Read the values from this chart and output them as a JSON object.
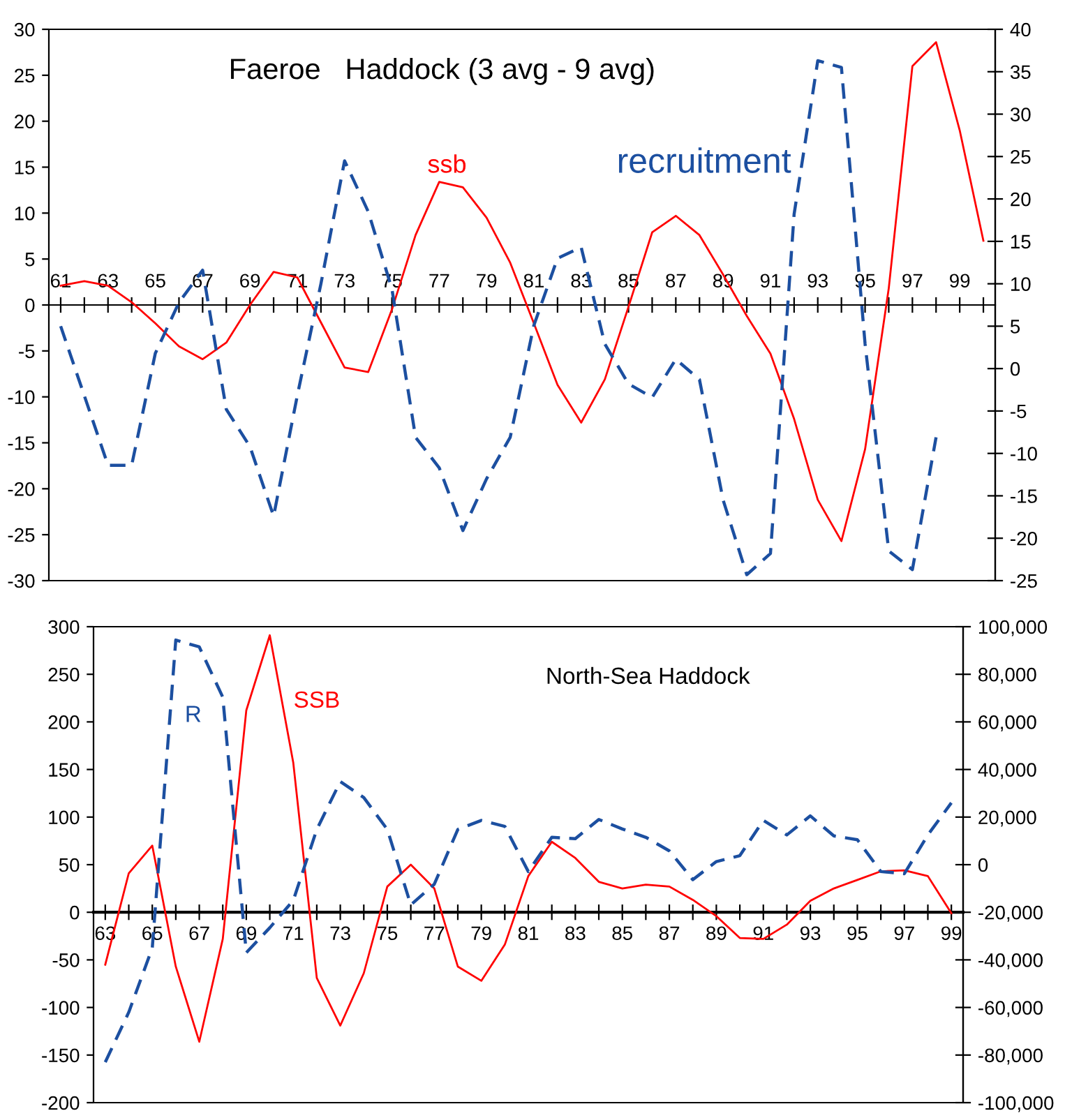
{
  "chart_data": [
    {
      "type": "line",
      "title": "Faeroe   Haddock (3 avg - 9 avg)",
      "x": [
        61,
        62,
        63,
        64,
        65,
        66,
        67,
        68,
        69,
        70,
        71,
        72,
        73,
        74,
        75,
        76,
        77,
        78,
        79,
        80,
        81,
        82,
        83,
        84,
        85,
        86,
        87,
        88,
        89,
        90,
        91,
        92,
        93,
        94,
        95,
        96,
        97,
        98,
        99,
        100
      ],
      "series": [
        {
          "name": "ssb",
          "color": "#ff0000",
          "line_style": "solid",
          "values": [
            2.1,
            2.6,
            2.1,
            0.3,
            -2,
            -4.5,
            -5.9,
            -4.1,
            0,
            3.6,
            3,
            -1.9,
            -6.8,
            -7.3,
            -0.5,
            7.6,
            13.4,
            12.8,
            9.5,
            4.6,
            -2,
            -8.7,
            -12.8,
            -8.1,
            -0.2,
            7.9,
            9.7,
            7.6,
            3.3,
            -1.2,
            -5.3,
            -12.4,
            -21.2,
            -25.7,
            -15.7,
            1.8,
            26,
            28.6,
            19,
            7
          ]
        },
        {
          "name": "recruitment",
          "color": "#1c4fa0",
          "line_style": "dashed",
          "axis": "y2",
          "values": [
            5,
            -3.2,
            -11.4,
            -11.4,
            1.8,
            7.8,
            11.6,
            -4.8,
            -9.2,
            -17.4,
            -3.2,
            10,
            24.5,
            18.5,
            9.4,
            -8.1,
            -11.7,
            -19.1,
            -13,
            -8.1,
            5.1,
            13,
            14.3,
            2.9,
            -1.8,
            -3.4,
            1.1,
            -1.3,
            -15.5,
            -24.3,
            -21.8,
            18.2,
            36.3,
            35.5,
            2.9,
            -21.5,
            -23.7,
            -8.1,
            null,
            null
          ]
        }
      ],
      "xlim": [
        60.5,
        100.5
      ],
      "xticks": [
        61,
        {
          "value": 62,
          "label": null
        },
        63,
        {
          "value": 64,
          "label": null
        },
        65,
        {
          "value": 66,
          "label": null
        },
        67,
        {
          "value": 68,
          "label": null
        },
        69,
        {
          "value": 70,
          "label": null
        },
        71,
        {
          "value": 72,
          "label": null
        },
        73,
        {
          "value": 74,
          "label": null
        },
        75,
        {
          "value": 76,
          "label": null
        },
        77,
        {
          "value": 78,
          "label": null
        },
        79,
        {
          "value": 80,
          "label": null
        },
        81,
        {
          "value": 82,
          "label": null
        },
        83,
        {
          "value": 84,
          "label": null
        },
        85,
        {
          "value": 86,
          "label": null
        },
        87,
        {
          "value": 88,
          "label": null
        },
        89,
        {
          "value": 90,
          "label": null
        },
        91,
        {
          "value": 92,
          "label": null
        },
        93,
        {
          "value": 94,
          "label": null
        },
        95,
        {
          "value": 96,
          "label": null
        },
        97,
        {
          "value": 98,
          "label": null
        },
        99,
        {
          "value": 100,
          "label": null
        }
      ],
      "ylim": [
        -30,
        30
      ],
      "yticks": [
        -30,
        -25,
        -20,
        -15,
        -10,
        -5,
        0,
        5,
        10,
        15,
        20,
        25,
        30
      ],
      "y2lim": [
        -25,
        40
      ],
      "y2ticks": [
        -25,
        -20,
        -15,
        -10,
        -5,
        0,
        5,
        10,
        15,
        20,
        25,
        30,
        35,
        40
      ],
      "grid": false,
      "legend": false,
      "marker": "none"
    },
    {
      "type": "line",
      "title": "North-Sea Haddock",
      "x": [
        63,
        64,
        65,
        66,
        67,
        68,
        69,
        70,
        71,
        72,
        73,
        74,
        75,
        76,
        77,
        78,
        79,
        80,
        81,
        82,
        83,
        84,
        85,
        86,
        87,
        88,
        89,
        90,
        91,
        92,
        93,
        94,
        95,
        96,
        97,
        98,
        99
      ],
      "series": [
        {
          "name": "SSB",
          "color": "#ff0000",
          "line_style": "solid",
          "values": [
            -55,
            41,
            70,
            -57,
            -136,
            -28,
            212,
            291,
            157,
            -69,
            -119,
            -64,
            27,
            50,
            25,
            -57,
            -72,
            -34,
            38,
            74,
            57,
            32,
            25,
            29,
            27,
            13,
            -4,
            -27,
            -28,
            -13,
            12,
            25,
            34,
            43,
            44,
            38,
            -1
          ]
        },
        {
          "name": "R",
          "color": "#1c4fa0",
          "line_style": "dashed",
          "axis": "y2",
          "values": [
            -83000,
            -62000,
            -35000,
            94400,
            91500,
            70400,
            -37000,
            -26500,
            -15000,
            14800,
            34900,
            28200,
            14800,
            -16900,
            -8200,
            14800,
            18600,
            16100,
            -2900,
            11500,
            10900,
            19000,
            15000,
            11500,
            5800,
            -6300,
            1300,
            3800,
            18600,
            12500,
            20500,
            12100,
            10500,
            -2900,
            -3800,
            12500,
            26000
          ]
        }
      ],
      "xlim": [
        62.5,
        99.5
      ],
      "xticks": [
        63,
        {
          "value": 64,
          "label": null
        },
        65,
        {
          "value": 66,
          "label": null
        },
        67,
        {
          "value": 68,
          "label": null
        },
        69,
        {
          "value": 70,
          "label": null
        },
        71,
        {
          "value": 72,
          "label": null
        },
        73,
        {
          "value": 74,
          "label": null
        },
        75,
        {
          "value": 76,
          "label": null
        },
        77,
        {
          "value": 78,
          "label": null
        },
        79,
        {
          "value": 80,
          "label": null
        },
        81,
        {
          "value": 82,
          "label": null
        },
        83,
        {
          "value": 84,
          "label": null
        },
        85,
        {
          "value": 86,
          "label": null
        },
        87,
        {
          "value": 88,
          "label": null
        },
        89,
        {
          "value": 90,
          "label": null
        },
        91,
        {
          "value": 92,
          "label": null
        },
        93,
        {
          "value": 94,
          "label": null
        },
        95,
        {
          "value": 96,
          "label": null
        },
        97,
        {
          "value": 98,
          "label": null
        },
        99
      ],
      "ylim": [
        -200,
        300
      ],
      "yticks": [
        -200,
        -150,
        -100,
        -50,
        0,
        50,
        100,
        150,
        200,
        250,
        300
      ],
      "y2lim": [
        -100000,
        100000
      ],
      "y2ticks": [
        {
          "value": -100000,
          "label": "-100,000"
        },
        {
          "value": -80000,
          "label": "-80,000"
        },
        {
          "value": -60000,
          "label": "-60,000"
        },
        {
          "value": -40000,
          "label": "-40,000"
        },
        {
          "value": -20000,
          "label": "-20,000"
        },
        0,
        {
          "value": 20000,
          "label": "20,000"
        },
        {
          "value": 40000,
          "label": "40,000"
        },
        {
          "value": 60000,
          "label": "60,000"
        },
        {
          "value": 80000,
          "label": "80,000"
        },
        {
          "value": 100000,
          "label": "100,000"
        }
      ],
      "grid": false,
      "legend": false,
      "marker": "none"
    }
  ]
}
